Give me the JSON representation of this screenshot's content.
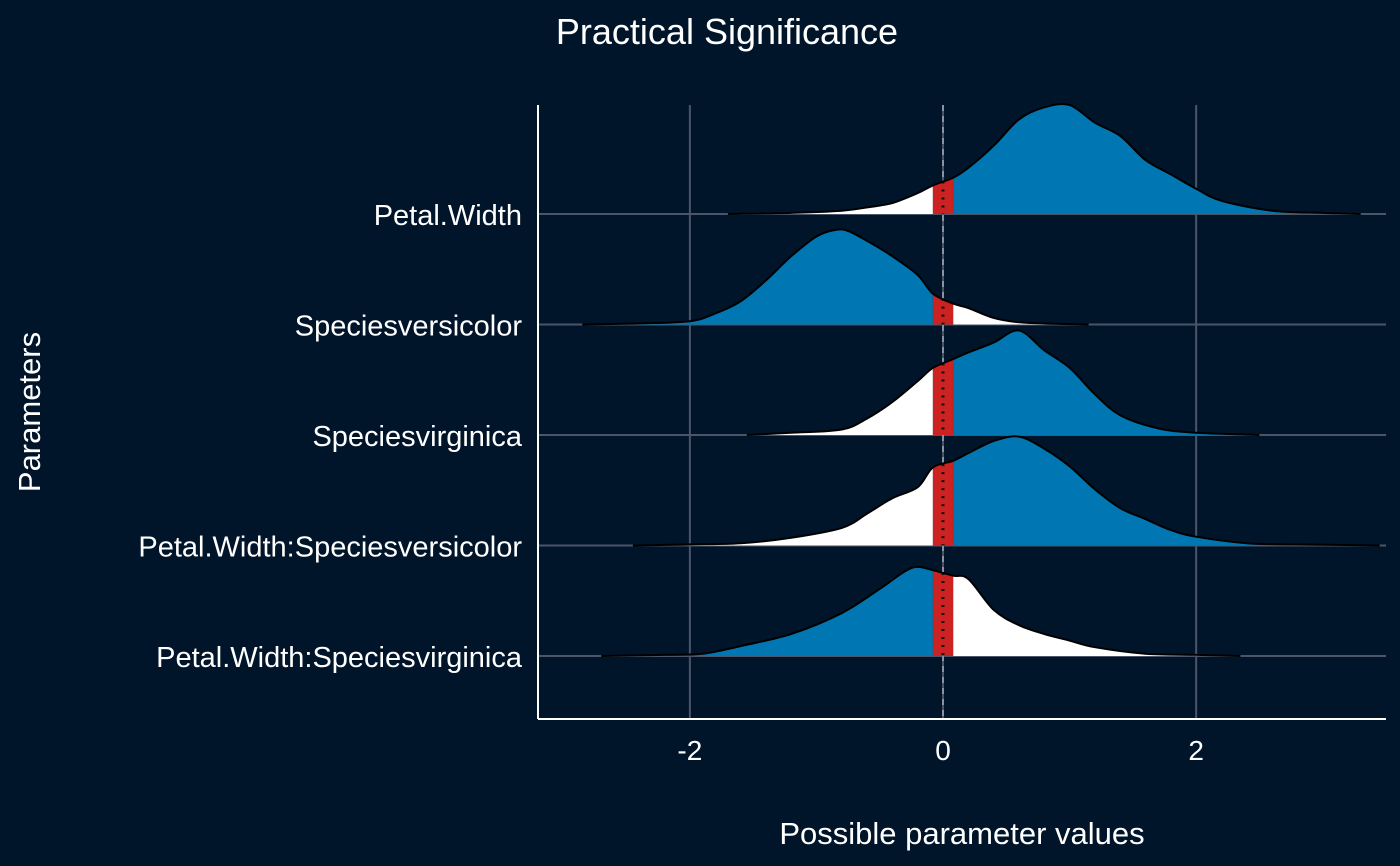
{
  "colors": {
    "background": "#00142a",
    "positive": "#0077b3",
    "negative": "#0077b3",
    "rope_area": "#ffffff",
    "rope_band": "#cc2222",
    "gridline": "#4a5567",
    "axis": "#ffffff",
    "text": "#ffffff"
  },
  "chart_data": {
    "type": "area",
    "title": "Practical Significance",
    "xlabel": "Possible parameter values",
    "ylabel": "Parameters",
    "xlim": [
      -3.2,
      3.5
    ],
    "xticks": [
      -2,
      0,
      2
    ],
    "xtick_labels": [
      "-2",
      "0",
      "2"
    ],
    "rope": [
      -0.08,
      0.08
    ],
    "grid": true,
    "legend": "none",
    "series": [
      {
        "name": "Petal.Width",
        "x": [
          -1.7,
          -1.2,
          -0.8,
          -0.6,
          -0.4,
          -0.2,
          -0.08,
          0.08,
          0.2,
          0.4,
          0.6,
          0.8,
          1.0,
          1.2,
          1.4,
          1.6,
          1.8,
          2.0,
          2.2,
          2.6,
          3.0,
          3.3
        ],
        "density": [
          0.0,
          0.01,
          0.03,
          0.06,
          0.1,
          0.19,
          0.26,
          0.33,
          0.42,
          0.62,
          0.86,
          0.97,
          0.99,
          0.83,
          0.71,
          0.49,
          0.36,
          0.23,
          0.12,
          0.03,
          0.01,
          0.0
        ]
      },
      {
        "name": "Speciesversicolor",
        "x": [
          -2.85,
          -2.4,
          -2.0,
          -1.8,
          -1.6,
          -1.4,
          -1.2,
          -1.0,
          -0.85,
          -0.75,
          -0.6,
          -0.4,
          -0.2,
          -0.08,
          0.08,
          0.2,
          0.4,
          0.6,
          0.8,
          1.15
        ],
        "density": [
          0.0,
          0.01,
          0.03,
          0.1,
          0.21,
          0.4,
          0.62,
          0.8,
          0.86,
          0.85,
          0.76,
          0.62,
          0.45,
          0.28,
          0.19,
          0.15,
          0.06,
          0.02,
          0.01,
          0.0
        ]
      },
      {
        "name": "Speciesvirginica",
        "x": [
          -1.55,
          -1.2,
          -0.8,
          -0.6,
          -0.4,
          -0.2,
          -0.08,
          0.08,
          0.2,
          0.4,
          0.6,
          0.8,
          1.0,
          1.2,
          1.4,
          1.7,
          2.0,
          2.5
        ],
        "density": [
          0.0,
          0.02,
          0.05,
          0.15,
          0.3,
          0.49,
          0.61,
          0.69,
          0.75,
          0.84,
          0.95,
          0.77,
          0.61,
          0.37,
          0.18,
          0.06,
          0.02,
          0.0
        ]
      },
      {
        "name": "Petal.Width:Speciesversicolor",
        "x": [
          -2.45,
          -2.0,
          -1.6,
          -1.2,
          -0.8,
          -0.6,
          -0.4,
          -0.2,
          -0.08,
          0.08,
          0.2,
          0.4,
          0.6,
          0.8,
          1.0,
          1.2,
          1.4,
          1.6,
          1.8,
          2.0,
          2.4,
          2.8,
          3.45
        ],
        "density": [
          0.0,
          0.01,
          0.02,
          0.07,
          0.16,
          0.29,
          0.43,
          0.53,
          0.71,
          0.77,
          0.84,
          0.95,
          0.99,
          0.88,
          0.72,
          0.51,
          0.34,
          0.24,
          0.14,
          0.08,
          0.02,
          0.01,
          0.0
        ]
      },
      {
        "name": "Petal.Width:Speciesvirginica",
        "x": [
          -2.7,
          -2.2,
          -1.9,
          -1.6,
          -1.2,
          -0.8,
          -0.5,
          -0.3,
          -0.2,
          -0.08,
          0.08,
          0.2,
          0.4,
          0.6,
          0.8,
          1.0,
          1.2,
          1.6,
          2.0,
          2.35
        ],
        "density": [
          0.0,
          0.01,
          0.02,
          0.09,
          0.2,
          0.39,
          0.61,
          0.77,
          0.81,
          0.78,
          0.73,
          0.7,
          0.42,
          0.28,
          0.2,
          0.14,
          0.08,
          0.02,
          0.01,
          0.0
        ]
      }
    ]
  }
}
